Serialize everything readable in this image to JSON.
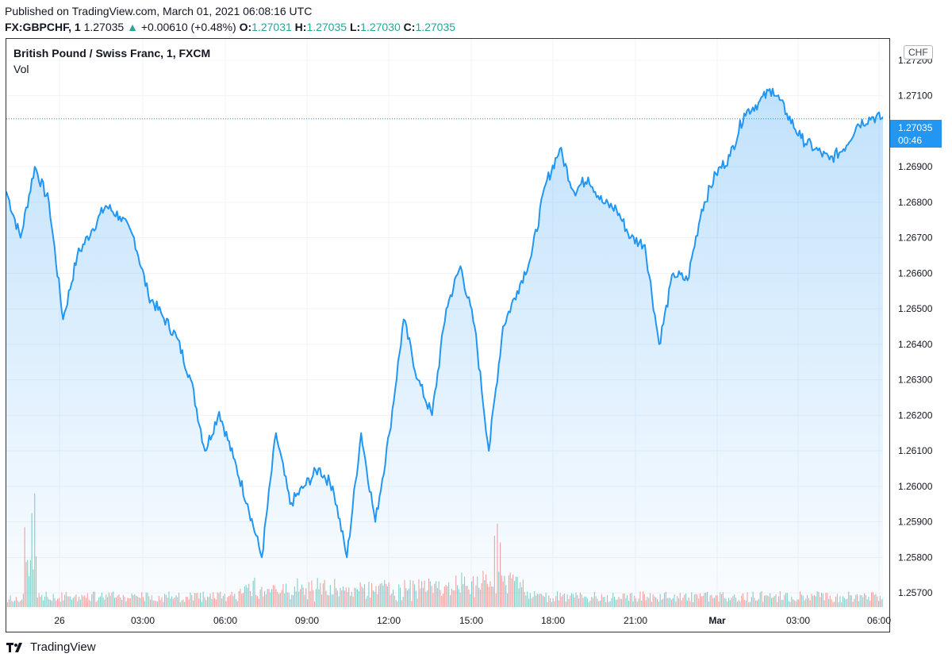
{
  "header": {
    "published": "Published on TradingView.com, March 01, 2021 06:08:16 UTC",
    "symbol": "FX:GBPCHF, 1",
    "last": "1.27035",
    "change": "+0.00610 (+0.48%)",
    "open_label": "O:",
    "open": "1.27031",
    "high_label": "H:",
    "high": "1.27035",
    "low_label": "L:",
    "low": "1.27030",
    "close_label": "C:",
    "close": "1.27035"
  },
  "legend": {
    "title": "British Pound / Swiss Franc, 1, FXCM",
    "vol": "Vol"
  },
  "axis": {
    "currency": "CHF",
    "price_tag": "1.27035",
    "countdown": "00:46"
  },
  "footer": {
    "brand": "TradingView"
  },
  "colors": {
    "line": "#2196f3",
    "up_vol": "#26a69a",
    "down_vol": "#ef5350",
    "accent": "#2196f3"
  },
  "chart_data": {
    "type": "area",
    "series": [
      {
        "x": [
          "Feb 25 22:00",
          "23:00",
          "Feb 26 00:00",
          "00:30",
          "01:00",
          "01:30",
          "02:00",
          "02:30",
          "03:00",
          "03:30",
          "04:00",
          "04:30",
          "05:00",
          "05:30",
          "06:00",
          "06:30",
          "07:00",
          "07:30",
          "08:00",
          "08:30",
          "09:00",
          "09:30",
          "10:00",
          "10:30",
          "11:00",
          "11:30",
          "12:00",
          "12:30",
          "13:00",
          "13:30",
          "14:00",
          "14:30",
          "15:00",
          "15:30",
          "16:00",
          "16:30",
          "17:00",
          "17:30",
          "18:00",
          "18:30",
          "19:00",
          "19:30",
          "20:00",
          "20:30",
          "21:00",
          "21:30",
          "22:00",
          "22:30",
          "23:00",
          "23:30",
          "Mar 01 00:00",
          "00:30",
          "01:00",
          "01:30",
          "02:00",
          "02:30",
          "03:00",
          "03:30",
          "04:00",
          "04:30",
          "05:00",
          "05:30",
          "06:00"
        ],
        "values": [
          1.2683,
          1.267,
          1.269,
          1.268,
          1.2647,
          1.2665,
          1.2672,
          1.2679,
          1.2676,
          1.267,
          1.2654,
          1.2648,
          1.2642,
          1.263,
          1.261,
          1.2621,
          1.2608,
          1.2595,
          1.258,
          1.2615,
          1.2595,
          1.26,
          1.2605,
          1.26,
          1.258,
          1.2615,
          1.259,
          1.2615,
          1.2647,
          1.263,
          1.262,
          1.265,
          1.2662,
          1.2645,
          1.261,
          1.2645,
          1.2655,
          1.2665,
          1.2685,
          1.2695,
          1.2683,
          1.2687,
          1.268,
          1.2678,
          1.267,
          1.2668,
          1.264,
          1.266,
          1.2658,
          1.2678,
          1.2688,
          1.2693,
          1.2705,
          1.2708,
          1.2712,
          1.2705,
          1.2698,
          1.2695,
          1.2692,
          1.2695,
          1.2702,
          1.2704,
          1.27035
        ]
      }
    ],
    "y_ticks": [
      "1.27200",
      "1.27100",
      "1.26900",
      "1.26800",
      "1.26700",
      "1.26600",
      "1.26500",
      "1.26400",
      "1.26300",
      "1.26200",
      "1.26100",
      "1.26000",
      "1.25900",
      "1.25800",
      "1.25700"
    ],
    "x_ticks": [
      "26",
      "03:00",
      "06:00",
      "09:00",
      "12:00",
      "15:00",
      "18:00",
      "21:00",
      "Mar",
      "03:00",
      "06:00"
    ],
    "ylim": [
      1.2566,
      1.2726
    ],
    "grid": true,
    "current_price": 1.27035
  }
}
